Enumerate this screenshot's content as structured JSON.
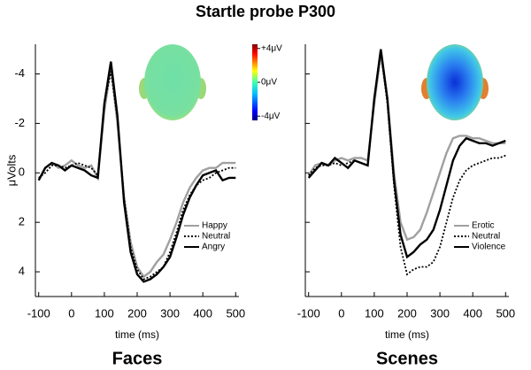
{
  "title": "Startle probe P300",
  "colorbar": {
    "clim": [
      -4.5,
      4.5
    ],
    "ticks": [
      {
        "value": 4,
        "label": "+4μV"
      },
      {
        "value": 0,
        "label": "0μV"
      },
      {
        "value": -4,
        "label": "-4μV"
      }
    ]
  },
  "chart_data": [
    {
      "type": "line",
      "title": "Faces",
      "xlabel": "time (ms)",
      "ylabel": "μVolts",
      "y_inverted": true,
      "ytick_labels": true,
      "legend": "lower right",
      "x": [
        -100,
        -80,
        -60,
        -40,
        -20,
        0,
        20,
        40,
        60,
        80,
        100,
        120,
        140,
        160,
        180,
        200,
        220,
        240,
        260,
        280,
        300,
        320,
        340,
        360,
        380,
        400,
        420,
        440,
        460,
        480,
        500
      ],
      "xlim": [
        -110,
        510
      ],
      "xticks": [
        -100,
        0,
        100,
        200,
        300,
        400,
        500
      ],
      "ylim": [
        -5.2,
        5
      ],
      "yticks": [
        -4,
        -2,
        0,
        2,
        4
      ],
      "series": [
        {
          "name": "Happy",
          "color": "#a0a0a0",
          "style": "solid",
          "values": [
            0.3,
            -0.2,
            -0.4,
            -0.2,
            -0.3,
            -0.5,
            -0.3,
            -0.2,
            -0.3,
            0.2,
            -2.5,
            -4.3,
            -2.0,
            1.0,
            2.8,
            3.8,
            4.2,
            4.0,
            3.6,
            3.3,
            2.7,
            2.0,
            1.2,
            0.6,
            0.2,
            -0.1,
            -0.2,
            -0.2,
            -0.4,
            -0.4,
            -0.4
          ]
        },
        {
          "name": "Neutral",
          "color": "#000000",
          "style": "dotted",
          "values": [
            0.2,
            0.0,
            -0.3,
            -0.3,
            -0.2,
            -0.3,
            -0.4,
            -0.3,
            -0.2,
            0.1,
            -2.8,
            -4.1,
            -2.2,
            1.0,
            3.0,
            3.9,
            4.3,
            4.2,
            4.0,
            3.8,
            3.2,
            2.4,
            1.5,
            0.9,
            0.5,
            0.3,
            0.2,
            0.0,
            -0.1,
            -0.2,
            -0.2
          ]
        },
        {
          "name": "Angry",
          "color": "#000000",
          "style": "solid",
          "values": [
            0.3,
            -0.2,
            -0.4,
            -0.3,
            -0.1,
            -0.3,
            -0.2,
            -0.1,
            0.1,
            0.2,
            -2.8,
            -4.5,
            -2.3,
            1.2,
            3.2,
            4.1,
            4.4,
            4.3,
            4.1,
            3.8,
            3.4,
            2.6,
            1.7,
            1.0,
            0.5,
            0.1,
            0.0,
            -0.1,
            0.3,
            0.2,
            0.2
          ]
        }
      ]
    },
    {
      "type": "line",
      "title": "Scenes",
      "xlabel": "time (ms)",
      "y_inverted": true,
      "ytick_labels": false,
      "legend": "lower right",
      "x": [
        -100,
        -80,
        -60,
        -40,
        -20,
        0,
        20,
        40,
        60,
        80,
        100,
        120,
        140,
        160,
        180,
        200,
        220,
        240,
        260,
        280,
        300,
        320,
        340,
        360,
        380,
        400,
        420,
        440,
        460,
        480,
        500
      ],
      "xlim": [
        -110,
        510
      ],
      "xticks": [
        -100,
        0,
        100,
        200,
        300,
        400,
        500
      ],
      "ylim": [
        -5.2,
        5
      ],
      "yticks": [
        -4,
        -2,
        0,
        2,
        4
      ],
      "series": [
        {
          "name": "Erotic",
          "color": "#a0a0a0",
          "style": "solid",
          "values": [
            0.1,
            -0.3,
            -0.4,
            -0.3,
            -0.5,
            -0.6,
            -0.5,
            -0.6,
            -0.6,
            -0.5,
            -2.8,
            -4.8,
            -3.0,
            0.0,
            2.0,
            2.7,
            2.6,
            2.3,
            1.6,
            0.8,
            0.0,
            -0.8,
            -1.4,
            -1.5,
            -1.5,
            -1.4,
            -1.4,
            -1.3,
            -1.2,
            -1.2,
            -1.2
          ]
        },
        {
          "name": "Neutral",
          "color": "#000000",
          "style": "dotted",
          "values": [
            0.1,
            -0.2,
            -0.3,
            -0.3,
            -0.4,
            -0.3,
            -0.4,
            -0.5,
            -0.4,
            -0.3,
            -3.0,
            -4.9,
            -2.8,
            0.5,
            3.0,
            4.1,
            3.9,
            3.8,
            3.8,
            3.6,
            3.0,
            2.0,
            1.0,
            0.3,
            -0.1,
            -0.3,
            -0.4,
            -0.5,
            -0.6,
            -0.6,
            -0.7
          ]
        },
        {
          "name": "Violence",
          "color": "#000000",
          "style": "solid",
          "values": [
            0.2,
            -0.1,
            -0.4,
            -0.3,
            -0.6,
            -0.4,
            -0.2,
            -0.5,
            -0.4,
            -0.3,
            -3.0,
            -5.0,
            -3.0,
            0.3,
            2.5,
            3.4,
            3.2,
            2.9,
            2.7,
            2.3,
            1.5,
            0.5,
            -0.5,
            -1.1,
            -1.4,
            -1.3,
            -1.2,
            -1.2,
            -1.1,
            -1.2,
            -1.3
          ]
        }
      ]
    }
  ]
}
